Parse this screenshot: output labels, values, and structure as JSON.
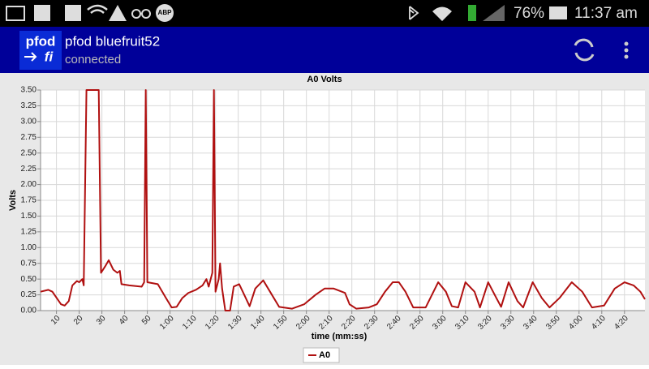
{
  "status_bar": {
    "abp": "ABP",
    "battery": "76%",
    "time": "11:37 am"
  },
  "app_bar": {
    "logo_top": "pfod",
    "logo_bottom": "fi",
    "title": "pfod bluefruit52",
    "subtitle": "connected"
  },
  "chart_data": {
    "type": "line",
    "title": "A0 Volts",
    "x_label": "time (mm:ss)",
    "y_label": "Volts",
    "xlim": [
      3,
      269
    ],
    "ylim": [
      0,
      3.5
    ],
    "grid": true,
    "legend": "bottom",
    "xticks": [
      10,
      20,
      30,
      40,
      50,
      {
        "value": 60,
        "label": "1:00"
      },
      {
        "value": 70,
        "label": "1:10"
      },
      {
        "value": 80,
        "label": "1:20"
      },
      {
        "value": 90,
        "label": "1:30"
      },
      {
        "value": 100,
        "label": "1:40"
      },
      {
        "value": 110,
        "label": "1:50"
      },
      {
        "value": 120,
        "label": "2:00"
      },
      {
        "value": 130,
        "label": "2:10"
      },
      {
        "value": 140,
        "label": "2:20"
      },
      {
        "value": 150,
        "label": "2:30"
      },
      {
        "value": 160,
        "label": "2:40"
      },
      {
        "value": 170,
        "label": "2:50"
      },
      {
        "value": 180,
        "label": "3:00"
      },
      {
        "value": 190,
        "label": "3:10"
      },
      {
        "value": 200,
        "label": "3:20"
      },
      {
        "value": 210,
        "label": "3:30"
      },
      {
        "value": 220,
        "label": "3:40"
      },
      {
        "value": 230,
        "label": "3:50"
      },
      {
        "value": 240,
        "label": "4:00"
      },
      {
        "value": 250,
        "label": "4:10"
      },
      {
        "value": 260,
        "label": "4:20"
      }
    ],
    "yticks": [
      {
        "value": 0,
        "label": "0.00"
      },
      {
        "value": 0.25,
        "label": "0.25"
      },
      {
        "value": 0.5,
        "label": "0.50"
      },
      {
        "value": 0.75,
        "label": "0.75"
      },
      {
        "value": 1,
        "label": "1.00"
      },
      {
        "value": 1.25,
        "label": "1.25"
      },
      {
        "value": 1.5,
        "label": "1.50"
      },
      {
        "value": 1.75,
        "label": "1.75"
      },
      {
        "value": 2,
        "label": "2.00"
      },
      {
        "value": 2.25,
        "label": "2.25"
      },
      {
        "value": 2.5,
        "label": "2.50"
      },
      {
        "value": 2.75,
        "label": "2.75"
      },
      {
        "value": 3,
        "label": "3.00"
      },
      {
        "value": 3.25,
        "label": "3.25"
      },
      {
        "value": 3.5,
        "label": "3.50"
      }
    ],
    "x": [
      3,
      6.4,
      8.2,
      12,
      13.6,
      15.4,
      17,
      19,
      20,
      21.4,
      22,
      23.2,
      25,
      28.6,
      29.6,
      31.4,
      33,
      35,
      36.8,
      37.9,
      38.6,
      42,
      47.5,
      48.6,
      49.3,
      50,
      54.6,
      58.2,
      60.7,
      62.9,
      65.4,
      68,
      71.4,
      74.3,
      76,
      77,
      78.6,
      79.3,
      80,
      81.4,
      82,
      82.9,
      84.3,
      86.4,
      88,
      90.4,
      92,
      95,
      97.5,
      101,
      104,
      108,
      113.6,
      119,
      124,
      128,
      132,
      137,
      139,
      142,
      147.5,
      151,
      154.6,
      158,
      160.7,
      163.6,
      167,
      172.5,
      178,
      181.4,
      184,
      186.8,
      190,
      194,
      196.4,
      200,
      203.6,
      205.7,
      209,
      212.9,
      215.4,
      219.6,
      223.6,
      227,
      231.4,
      236.8,
      241.4,
      245.7,
      251,
      255.7,
      260,
      264,
      267,
      269
    ],
    "series": [
      {
        "name": "A0",
        "color": "#b01010",
        "values": [
          0.3,
          0.33,
          0.3,
          0.1,
          0.08,
          0.15,
          0.4,
          0.47,
          0.45,
          0.5,
          0.4,
          3.5,
          3.5,
          3.5,
          0.6,
          0.7,
          0.8,
          0.65,
          0.6,
          0.63,
          0.42,
          0.4,
          0.38,
          0.45,
          3.5,
          0.45,
          0.42,
          0.2,
          0.05,
          0.06,
          0.2,
          0.28,
          0.33,
          0.4,
          0.5,
          0.38,
          0.6,
          3.5,
          0.3,
          0.5,
          0.75,
          0.35,
          0,
          0,
          0.38,
          0.42,
          0.3,
          0.07,
          0.35,
          0.48,
          0.3,
          0.06,
          0.03,
          0.1,
          0.25,
          0.35,
          0.35,
          0.28,
          0.1,
          0.03,
          0.05,
          0.1,
          0.3,
          0.45,
          0.45,
          0.3,
          0.05,
          0.05,
          0.45,
          0.3,
          0.07,
          0.05,
          0.45,
          0.3,
          0.05,
          0.45,
          0.2,
          0.06,
          0.45,
          0.15,
          0.05,
          0.45,
          0.2,
          0.05,
          0.2,
          0.45,
          0.3,
          0.05,
          0.08,
          0.35,
          0.45,
          0.4,
          0.3,
          0.18
        ]
      }
    ]
  }
}
